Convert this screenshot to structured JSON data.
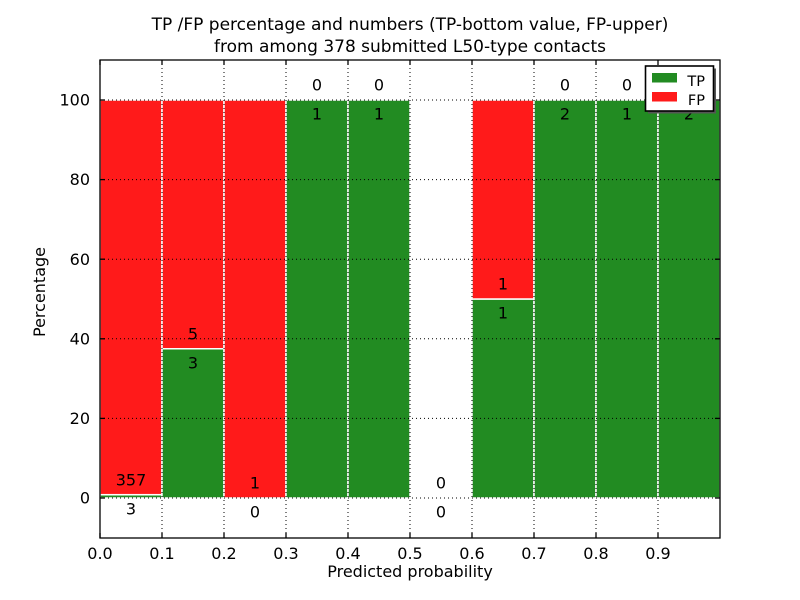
{
  "figure": {
    "title_line1": "TP /FP percentage and numbers (TP-bottom value, FP-upper)",
    "title_line2": "from among 378 submitted L50-type contacts",
    "xlabel": "Predicted probability",
    "ylabel": "Percentage"
  },
  "legend": {
    "items": [
      {
        "label": "TP",
        "color": "#228B22"
      },
      {
        "label": "FP",
        "color": "#FF1A1A"
      }
    ]
  },
  "chart_data": {
    "type": "bar",
    "stacked": true,
    "title": "TP /FP percentage and numbers (TP-bottom value, FP-upper) from among 378 submitted L50-type contacts",
    "xlabel": "Predicted probability",
    "ylabel": "Percentage",
    "xlim": [
      0.0,
      1.0
    ],
    "ylim": [
      -10,
      110
    ],
    "x_tick_labels": [
      "0.0",
      "0.1",
      "0.2",
      "0.3",
      "0.4",
      "0.5",
      "0.6",
      "0.7",
      "0.8",
      "0.9"
    ],
    "y_tick_values": [
      0,
      20,
      40,
      60,
      80,
      100
    ],
    "grid": "dotted",
    "legend_position": "upper right",
    "total_contacts": 378,
    "bin_starts": [
      0.0,
      0.1,
      0.2,
      0.3,
      0.4,
      0.5,
      0.6,
      0.7,
      0.8,
      0.9
    ],
    "bin_width": 0.1,
    "series": [
      {
        "name": "TP",
        "color": "#228B22",
        "counts": [
          3,
          3,
          0,
          1,
          1,
          0,
          1,
          2,
          1,
          2
        ],
        "percent": [
          0.833,
          37.5,
          0,
          100,
          100,
          0,
          50,
          100,
          100,
          100
        ]
      },
      {
        "name": "FP",
        "color": "#FF1A1A",
        "counts": [
          357,
          5,
          1,
          0,
          0,
          0,
          1,
          0,
          0,
          0
        ],
        "percent": [
          99.167,
          62.5,
          100,
          0,
          0,
          0,
          50,
          0,
          0,
          0
        ]
      }
    ]
  }
}
